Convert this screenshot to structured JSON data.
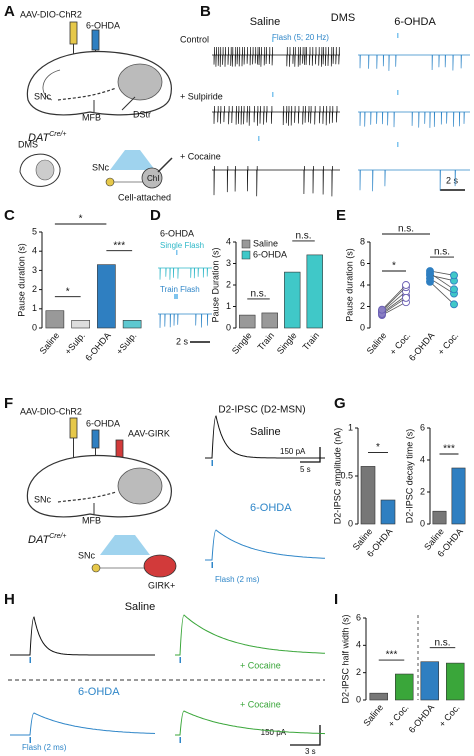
{
  "labels": {
    "a": "A",
    "b": "B",
    "c": "C",
    "d": "D",
    "e": "E",
    "f": "F",
    "g": "G",
    "h": "H",
    "i": "I"
  },
  "panel_a": {
    "virus": "AAV-DIO-ChR2",
    "toxin": "6-OHDA",
    "snc": "SNc",
    "mfb": "MFB",
    "dstr": "DStr",
    "dat": "DAT",
    "dat_sup": "Cre/+",
    "dms": "DMS",
    "snc2": "SNc",
    "chi": "ChI",
    "recording": "Cell-attached"
  },
  "panel_b": {
    "saline": "Saline",
    "region": "DMS",
    "ohda": "6-OHDA",
    "control": "Control",
    "flash": "Flash (5; 20 Hz)",
    "sulpiride": "+ Sulpiride",
    "cocaine": "+ Cocaine",
    "scale": "2 s"
  },
  "panel_d": {
    "ohda": "6-OHDA",
    "single": "Single Flash",
    "train": "Train Flash",
    "scale": "2 s"
  },
  "panel_f": {
    "virus": "AAV-DIO-ChR2",
    "toxin": "6-OHDA",
    "girk_virus": "AAV-GIRK",
    "snc": "SNc",
    "mfb": "MFB",
    "dat": "DAT",
    "dat_sup": "Cre/+",
    "snc2": "SNc",
    "girk": "GIRK+",
    "title": "D2-IPSC (D2-MSN)",
    "saline": "Saline",
    "scale_y": "150 pA",
    "scale_x": "5 s",
    "ohda": "6-OHDA",
    "flash": "Flash (2 ms)"
  },
  "panel_h": {
    "saline": "Saline",
    "cocaine1": "+ Cocaine",
    "ohda": "6-OHDA",
    "cocaine2": "+ Cocaine",
    "flash": "Flash (2 ms)",
    "scale_y": "150 pA",
    "scale_x": "3 s"
  },
  "chart_data": [
    {
      "type": "bar",
      "ylabel": "Pause duration (s)",
      "categories": [
        "Saline",
        "+Sulp.",
        "6-OHDA",
        "+Sulp."
      ],
      "values": [
        0.9,
        0.4,
        3.3,
        0.4
      ],
      "colors": [
        "#999999",
        "#dddddd",
        "#2f7fc1",
        "#5ec8d0"
      ],
      "ylim": [
        0,
        5
      ],
      "yticks": [
        0,
        1,
        2,
        3,
        4,
        5
      ],
      "annotations": [
        {
          "text": "*",
          "between": [
            0,
            1
          ]
        },
        {
          "text": "*",
          "between": [
            0,
            2
          ]
        },
        {
          "text": "***",
          "between": [
            2,
            3
          ]
        }
      ]
    },
    {
      "type": "bar",
      "ylabel": "Pause Duration (s)",
      "categories": [
        "Single",
        "Train",
        "Single",
        "Train"
      ],
      "values": [
        0.6,
        0.7,
        2.6,
        3.4
      ],
      "colors": [
        "#999999",
        "#999999",
        "#40c8c8",
        "#40c8c8"
      ],
      "legend": [
        {
          "name": "Saline",
          "color": "#999999"
        },
        {
          "name": "6-OHDA",
          "color": "#40c8c8"
        }
      ],
      "ylim": [
        0,
        4
      ],
      "yticks": [
        0,
        1,
        2,
        3,
        4
      ],
      "annotations": [
        {
          "text": "n.s.",
          "between": [
            0,
            1
          ]
        },
        {
          "text": "n.s.",
          "between": [
            2,
            3
          ]
        }
      ]
    },
    {
      "type": "paired",
      "ylabel": "Pause duration (s)",
      "categories": [
        "Saline",
        "+ Coc.",
        "6-OHDA",
        "+ Coc."
      ],
      "colors": [
        "#8a7fc4",
        "#ffffff",
        "#2f7fc1",
        "#40c8c8"
      ],
      "pairs": [
        [
          [
            1.2,
            2.4
          ],
          [
            1.4,
            3.0
          ],
          [
            1.5,
            3.4
          ],
          [
            1.6,
            3.8
          ],
          [
            1.3,
            2.8
          ],
          [
            1.7,
            4.0
          ]
        ],
        [
          [
            4.6,
            3.2
          ],
          [
            4.9,
            4.4
          ],
          [
            5.1,
            3.6
          ],
          [
            4.3,
            2.2
          ],
          [
            5.3,
            4.9
          ]
        ]
      ],
      "ylim": [
        0,
        8
      ],
      "yticks": [
        0,
        2,
        4,
        6,
        8
      ],
      "annotations": [
        {
          "text": "*",
          "between": [
            0,
            1
          ]
        },
        {
          "text": "n.s.",
          "between": [
            0,
            2
          ]
        },
        {
          "text": "n.s.",
          "between": [
            2,
            3
          ]
        }
      ]
    },
    {
      "type": "bar",
      "ylabel": "D2-IPSC amplitude (nA)",
      "categories": [
        "Saline",
        "6-OHDA"
      ],
      "values": [
        0.6,
        0.25
      ],
      "colors": [
        "#777777",
        "#2f7fc1"
      ],
      "ylim": [
        0,
        1
      ],
      "yticks": [
        0,
        0.5,
        1
      ],
      "annotations": [
        {
          "text": "*",
          "between": [
            0,
            1
          ]
        }
      ]
    },
    {
      "type": "bar",
      "ylabel": "D2-IPSC decay time (s)",
      "categories": [
        "Saline",
        "6-OHDA"
      ],
      "values": [
        0.8,
        3.5
      ],
      "colors": [
        "#777777",
        "#2f7fc1"
      ],
      "ylim": [
        0,
        6
      ],
      "yticks": [
        0,
        2,
        4,
        6
      ],
      "annotations": [
        {
          "text": "***",
          "between": [
            0,
            1
          ]
        }
      ]
    },
    {
      "type": "bar",
      "ylabel": "D2-IPSC half width (s)",
      "categories": [
        "Saline",
        "+ Coc.",
        "6-OHDA",
        "+ Coc."
      ],
      "values": [
        0.5,
        1.9,
        2.8,
        2.7
      ],
      "colors": [
        "#777777",
        "#3aa63a",
        "#2f7fc1",
        "#3aa63a"
      ],
      "ylim": [
        0,
        6
      ],
      "yticks": [
        0,
        2,
        4,
        6
      ],
      "annotations": [
        {
          "text": "***",
          "between": [
            0,
            1
          ]
        },
        {
          "text": "n.s.",
          "between": [
            2,
            3
          ]
        }
      ]
    }
  ]
}
